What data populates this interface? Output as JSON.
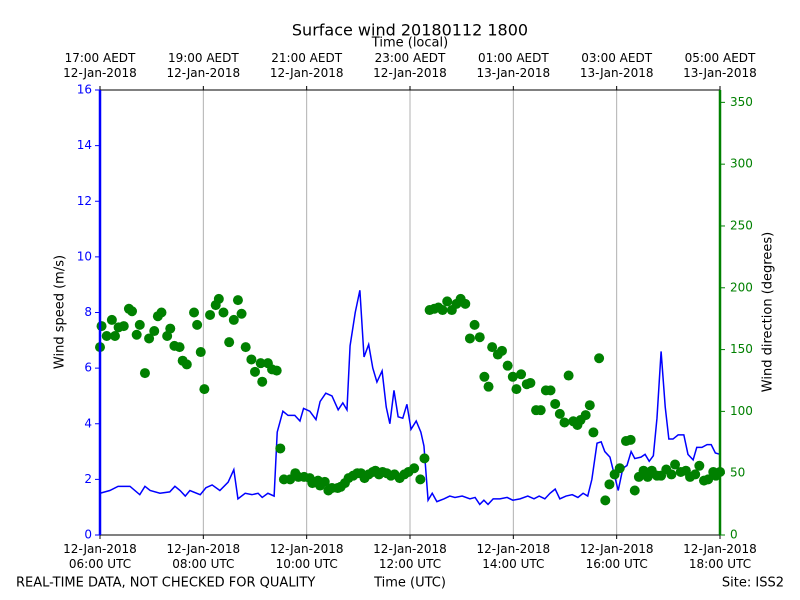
{
  "chart_data": {
    "type": "line",
    "title": "Surface wind 20180112 1800",
    "top_axis_label": "Time (local)",
    "xlabel": "Time (UTC)",
    "ylabel": "Wind speed (m/s)",
    "y2label": "Wind direction (degrees)",
    "footer_left": "REAL-TIME DATA, NOT CHECKED FOR QUALITY",
    "footer_right": "Site: ISS2",
    "xlim": [
      6,
      18
    ],
    "ylim": [
      0,
      16
    ],
    "y2lim": [
      0,
      360
    ],
    "grid": true,
    "xticks": [
      {
        "value": 6,
        "label": "12-Jan-2018\n06:00 UTC"
      },
      {
        "value": 8,
        "label": "12-Jan-2018\n08:00 UTC"
      },
      {
        "value": 10,
        "label": "12-Jan-2018\n10:00 UTC"
      },
      {
        "value": 12,
        "label": "12-Jan-2018\n12:00 UTC"
      },
      {
        "value": 14,
        "label": "12-Jan-2018\n14:00 UTC"
      },
      {
        "value": 16,
        "label": "12-Jan-2018\n16:00 UTC"
      },
      {
        "value": 18,
        "label": "12-Jan-2018\n18:00 UTC"
      }
    ],
    "x2ticks": [
      {
        "value": 6,
        "label": "17:00 AEDT\n12-Jan-2018"
      },
      {
        "value": 8,
        "label": "19:00 AEDT\n12-Jan-2018"
      },
      {
        "value": 10,
        "label": "21:00 AEDT\n12-Jan-2018"
      },
      {
        "value": 12,
        "label": "23:00 AEDT\n12-Jan-2018"
      },
      {
        "value": 14,
        "label": "01:00 AEDT\n13-Jan-2018"
      },
      {
        "value": 16,
        "label": "03:00 AEDT\n13-Jan-2018"
      },
      {
        "value": 18,
        "label": "05:00 AEDT\n13-Jan-2018"
      }
    ],
    "yticks": [
      0,
      2,
      4,
      6,
      8,
      10,
      12,
      14,
      16
    ],
    "y2ticks": [
      0,
      50,
      100,
      150,
      200,
      250,
      300,
      350
    ],
    "series": [
      {
        "type": "line",
        "color": "#0000ff",
        "axis": "y",
        "x": [
          6.0,
          6.19,
          6.35,
          6.58,
          6.77,
          6.87,
          6.97,
          7.16,
          7.35,
          7.45,
          7.55,
          7.65,
          7.74,
          7.94,
          8.05,
          8.17,
          8.32,
          8.48,
          8.59,
          8.67,
          8.81,
          8.94,
          9.06,
          9.14,
          9.25,
          9.37,
          9.43,
          9.54,
          9.64,
          9.77,
          9.87,
          9.94,
          10.06,
          10.18,
          10.26,
          10.37,
          10.49,
          10.61,
          10.7,
          10.78,
          10.84,
          10.94,
          11.03,
          11.11,
          11.2,
          11.28,
          11.36,
          11.46,
          11.54,
          11.61,
          11.69,
          11.77,
          11.86,
          11.94,
          12.02,
          12.12,
          12.21,
          12.27,
          12.35,
          12.43,
          12.52,
          12.66,
          12.77,
          12.87,
          13.01,
          13.16,
          13.26,
          13.35,
          13.43,
          13.51,
          13.61,
          13.74,
          13.88,
          13.99,
          14.13,
          14.28,
          14.4,
          14.5,
          14.61,
          14.71,
          14.81,
          14.9,
          15.02,
          15.14,
          15.25,
          15.35,
          15.44,
          15.52,
          15.62,
          15.7,
          15.77,
          15.87,
          15.95,
          16.03,
          16.12,
          16.2,
          16.28,
          16.35,
          16.47,
          16.55,
          16.63,
          16.71,
          16.78,
          16.86,
          16.94,
          17.01,
          17.09,
          17.19,
          17.3,
          17.38,
          17.48,
          17.55,
          17.65,
          17.75,
          17.83,
          17.91,
          18.0
        ],
        "values": [
          1.5,
          1.6,
          1.75,
          1.75,
          1.45,
          1.75,
          1.6,
          1.5,
          1.55,
          1.75,
          1.6,
          1.4,
          1.6,
          1.45,
          1.7,
          1.8,
          1.6,
          1.9,
          2.35,
          1.3,
          1.5,
          1.45,
          1.5,
          1.35,
          1.5,
          1.4,
          3.7,
          4.45,
          4.3,
          4.3,
          4.1,
          4.55,
          4.45,
          4.15,
          4.8,
          5.1,
          5.0,
          4.5,
          4.75,
          4.5,
          6.8,
          8.0,
          8.8,
          6.4,
          6.85,
          6.0,
          5.5,
          5.9,
          4.6,
          4.0,
          5.2,
          4.25,
          4.2,
          4.7,
          3.8,
          4.1,
          3.7,
          3.2,
          1.25,
          1.5,
          1.2,
          1.3,
          1.4,
          1.35,
          1.4,
          1.3,
          1.35,
          1.1,
          1.25,
          1.1,
          1.3,
          1.3,
          1.35,
          1.25,
          1.3,
          1.4,
          1.3,
          1.4,
          1.3,
          1.5,
          1.65,
          1.3,
          1.4,
          1.45,
          1.35,
          1.5,
          1.4,
          2.0,
          3.3,
          3.35,
          3.0,
          2.8,
          2.2,
          1.6,
          2.4,
          2.5,
          3.0,
          2.75,
          2.8,
          2.9,
          2.65,
          2.85,
          4.2,
          6.6,
          4.6,
          3.45,
          3.45,
          3.6,
          3.6,
          2.9,
          2.7,
          3.15,
          3.15,
          3.25,
          3.25,
          2.95,
          2.9
        ]
      },
      {
        "type": "scatter",
        "color": "#008000",
        "axis": "y2",
        "x": [
          6.0,
          6.03,
          6.13,
          6.23,
          6.29,
          6.36,
          6.46,
          6.56,
          6.62,
          6.71,
          6.77,
          6.87,
          6.95,
          7.05,
          7.12,
          7.19,
          7.3,
          7.36,
          7.44,
          7.54,
          7.6,
          7.68,
          7.82,
          7.88,
          7.95,
          8.02,
          8.13,
          8.24,
          8.3,
          8.39,
          8.5,
          8.59,
          8.67,
          8.74,
          8.82,
          8.93,
          9.0,
          9.11,
          9.14,
          9.25,
          9.33,
          9.42,
          9.49,
          9.56,
          9.68,
          9.78,
          9.84,
          9.95,
          10.06,
          10.11,
          10.22,
          10.26,
          10.35,
          10.42,
          10.49,
          10.6,
          10.66,
          10.74,
          10.81,
          10.9,
          10.98,
          11.05,
          11.12,
          11.2,
          11.28,
          11.33,
          11.4,
          11.47,
          11.55,
          11.63,
          11.7,
          11.8,
          11.89,
          11.97,
          12.08,
          12.2,
          12.28,
          12.38,
          12.47,
          12.55,
          12.63,
          12.72,
          12.81,
          12.9,
          12.98,
          13.07,
          13.16,
          13.25,
          13.35,
          13.44,
          13.52,
          13.59,
          13.7,
          13.78,
          13.89,
          13.99,
          14.06,
          14.15,
          14.26,
          14.33,
          14.44,
          14.53,
          14.63,
          14.72,
          14.81,
          14.9,
          14.99,
          15.07,
          15.16,
          15.24,
          15.3,
          15.4,
          15.48,
          15.55,
          15.66,
          15.78,
          15.86,
          15.96,
          16.06,
          16.18,
          16.27,
          16.35,
          16.43,
          16.52,
          16.6,
          16.68,
          16.78,
          16.86,
          16.96,
          17.06,
          17.13,
          17.24,
          17.34,
          17.42,
          17.52,
          17.6,
          17.69,
          17.77,
          17.87,
          17.92,
          18.0
        ],
        "values": [
          152,
          169,
          161,
          174,
          161,
          168,
          169,
          183,
          181,
          162,
          170,
          131,
          159,
          165,
          177,
          180,
          161,
          167,
          153,
          152,
          141,
          138,
          180,
          170,
          148,
          118,
          178,
          186,
          191,
          180,
          156,
          174,
          190,
          179,
          152,
          142,
          132,
          139,
          124,
          139,
          134,
          133,
          70,
          45,
          45,
          50,
          47,
          47,
          46,
          42,
          44,
          40,
          43,
          36,
          38,
          38,
          39,
          42,
          46,
          48,
          50,
          50,
          46,
          49,
          51,
          52,
          49,
          51,
          50,
          48,
          49,
          46,
          49,
          51,
          54,
          45,
          62,
          182,
          183,
          184,
          182,
          189,
          182,
          187,
          191,
          187,
          159,
          170,
          160,
          128,
          120,
          152,
          146,
          149,
          137,
          128,
          118,
          130,
          122,
          123,
          101,
          101,
          117,
          117,
          106,
          98,
          91,
          129,
          92,
          89,
          93,
          97,
          105,
          83,
          143,
          28,
          41,
          49,
          54,
          76,
          77,
          36,
          47,
          52,
          47,
          52,
          48,
          48,
          53,
          49,
          57,
          51,
          52,
          47,
          49,
          56,
          44,
          45,
          51,
          48,
          51
        ]
      }
    ]
  }
}
